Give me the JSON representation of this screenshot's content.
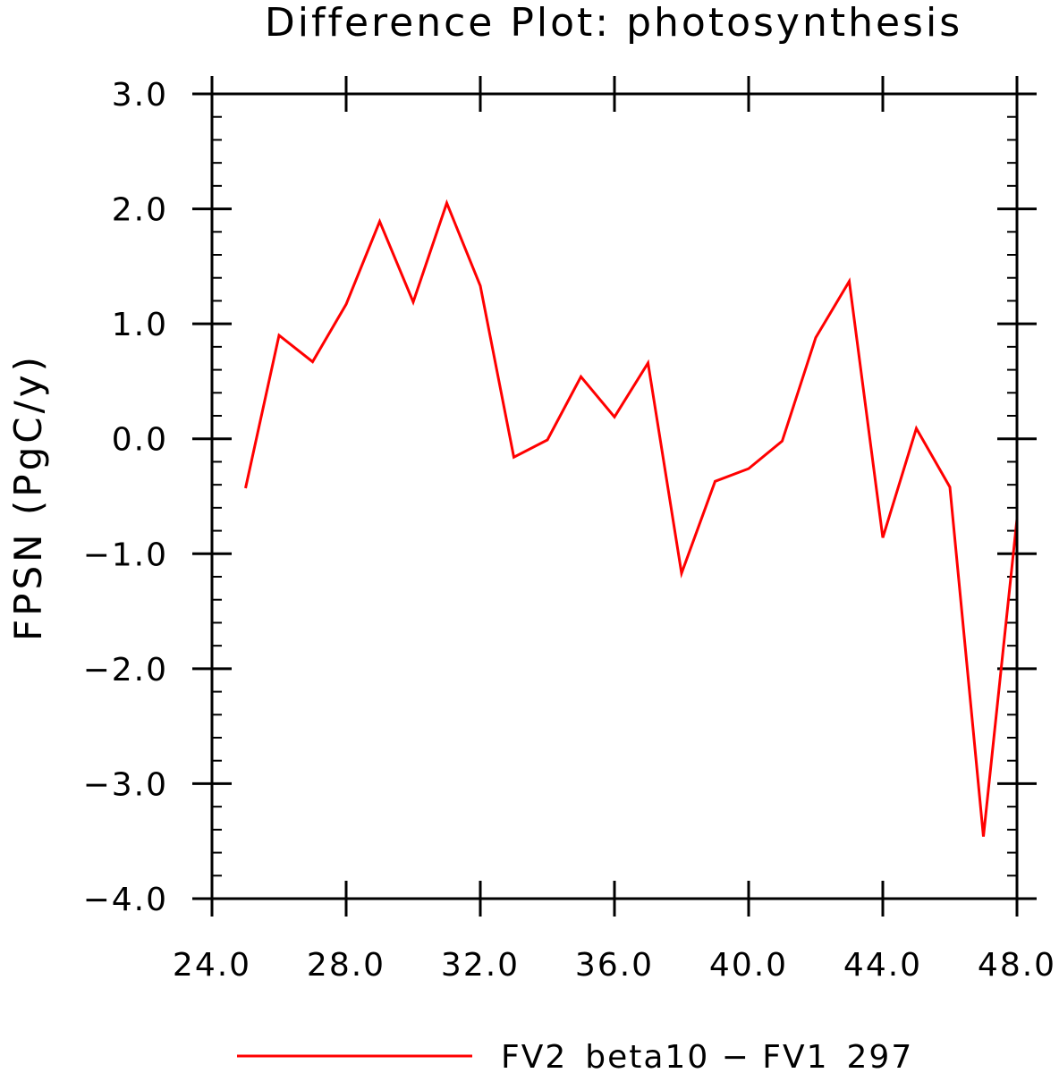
{
  "chart_data": {
    "type": "line",
    "title": "Difference Plot: photosynthesis",
    "xlabel": "",
    "ylabel": "FPSN  (PgC/y)",
    "xlim": [
      24,
      48
    ],
    "ylim": [
      -4,
      3
    ],
    "x_ticks": [
      "24.0",
      "28.0",
      "32.0",
      "36.0",
      "40.0",
      "44.0",
      "48.0"
    ],
    "y_ticks": [
      "3.0",
      "2.0",
      "1.0",
      "0.0",
      "−1.0",
      "−2.0",
      "−3.0",
      "−4.0"
    ],
    "x_tick_values": [
      24,
      28,
      32,
      36,
      40,
      44,
      48
    ],
    "y_tick_values": [
      3,
      2,
      1,
      0,
      -1,
      -2,
      -3,
      -4
    ],
    "grid": false,
    "legend_position": "bottom",
    "series": [
      {
        "name": "FV2_beta10 − FV1_297",
        "color": "#ff0000",
        "x": [
          25,
          26,
          27,
          28,
          29,
          30,
          31,
          32,
          33,
          34,
          35,
          36,
          37,
          38,
          39,
          40,
          41,
          42,
          43,
          44,
          45,
          46,
          47,
          48
        ],
        "y": [
          -0.43,
          0.9,
          0.67,
          1.17,
          1.89,
          1.19,
          2.05,
          1.33,
          -0.16,
          -0.01,
          0.54,
          0.19,
          0.66,
          -1.17,
          -0.37,
          -0.26,
          -0.02,
          0.88,
          1.37,
          -0.86,
          0.09,
          -0.42,
          -3.46,
          -0.7
        ]
      }
    ]
  }
}
